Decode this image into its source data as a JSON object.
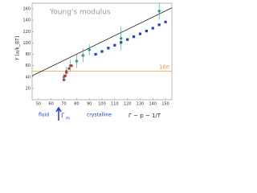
{
  "chart_data": {
    "type": "scatter",
    "title": "Young's modulus",
    "y_label": "Y  [a/k_BT]",
    "xlim": [
      45,
      155
    ],
    "ylim": [
      0,
      170
    ],
    "xticks": [
      50,
      60,
      70,
      80,
      90,
      100,
      110,
      120,
      130,
      140,
      150
    ],
    "yticks": [
      20,
      40,
      60,
      80,
      100,
      120,
      140,
      160
    ],
    "fit_line": {
      "color": "#000000",
      "x": [
        45,
        155
      ],
      "values": [
        42,
        162
      ]
    },
    "reference_line": {
      "color": "#f0a040",
      "value": 50.3,
      "label": "16π"
    },
    "series": [
      {
        "color": "#1f3fd6",
        "marker": "square",
        "x": [
          95,
          100,
          105,
          110,
          115,
          120,
          125,
          130,
          135,
          140,
          145,
          150
        ],
        "values": [
          80,
          85,
          91,
          96,
          101,
          106,
          111,
          116,
          121,
          126,
          132,
          137
        ]
      },
      {
        "color": "#2a9d8f",
        "marker": "circle",
        "x": [
          70,
          72,
          75,
          80,
          85,
          90,
          115,
          145
        ],
        "values": [
          40,
          50,
          60,
          68,
          78,
          88,
          108,
          156
        ],
        "errors": [
          6,
          8,
          10,
          12,
          12,
          10,
          20,
          15
        ]
      },
      {
        "color": "#d03030",
        "marker": "circle",
        "x": [
          70,
          71,
          72,
          74,
          76
        ],
        "values": [
          35,
          42,
          48,
          55,
          60
        ]
      }
    ],
    "annotations": {
      "fluid": "fluid",
      "crystalline": "crystalline",
      "gamma_m": "Γ",
      "gamma_m_sub": "m",
      "relation": "Γ ~ p ~ 1/T"
    }
  }
}
